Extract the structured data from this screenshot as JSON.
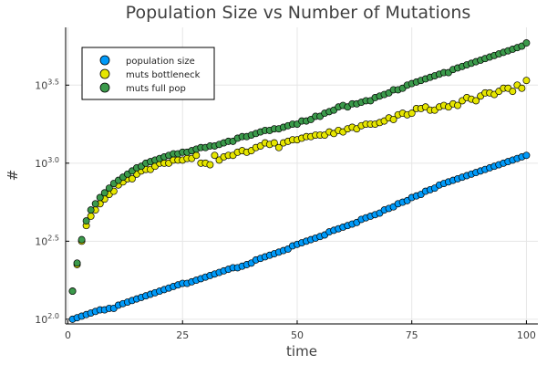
{
  "chart_data": {
    "type": "scatter",
    "title": "Population Size vs Number of Mutations",
    "xlabel": "time",
    "ylabel": "#",
    "xlim": [
      -0.5,
      102.5
    ],
    "ylim_log10": [
      1.97,
      3.87
    ],
    "yscale": "log10",
    "grid": true,
    "legend_position": "top-left",
    "x_ticks": [
      0,
      25,
      50,
      75,
      100
    ],
    "y_ticks": [
      {
        "value": 2.0,
        "base": "10",
        "exp": "2.0"
      },
      {
        "value": 2.5,
        "base": "10",
        "exp": "2.5"
      },
      {
        "value": 3.0,
        "base": "10",
        "exp": "3.0"
      },
      {
        "value": 3.5,
        "base": "10",
        "exp": "3.5"
      }
    ],
    "x": [
      1,
      2,
      3,
      4,
      5,
      6,
      7,
      8,
      9,
      10,
      11,
      12,
      13,
      14,
      15,
      16,
      17,
      18,
      19,
      20,
      21,
      22,
      23,
      24,
      25,
      26,
      27,
      28,
      29,
      30,
      31,
      32,
      33,
      34,
      35,
      36,
      37,
      38,
      39,
      40,
      41,
      42,
      43,
      44,
      45,
      46,
      47,
      48,
      49,
      50,
      51,
      52,
      53,
      54,
      55,
      56,
      57,
      58,
      59,
      60,
      61,
      62,
      63,
      64,
      65,
      66,
      67,
      68,
      69,
      70,
      71,
      72,
      73,
      74,
      75,
      76,
      77,
      78,
      79,
      80,
      81,
      82,
      83,
      84,
      85,
      86,
      87,
      88,
      89,
      90,
      91,
      92,
      93,
      94,
      95,
      96,
      97,
      98,
      99,
      100
    ],
    "series": [
      {
        "name": "population size",
        "color": "#009af9",
        "values_log10": [
          2.0,
          2.01,
          2.02,
          2.03,
          2.04,
          2.05,
          2.06,
          2.06,
          2.07,
          2.07,
          2.09,
          2.1,
          2.11,
          2.12,
          2.13,
          2.14,
          2.15,
          2.16,
          2.17,
          2.18,
          2.19,
          2.2,
          2.21,
          2.22,
          2.23,
          2.23,
          2.24,
          2.25,
          2.26,
          2.27,
          2.28,
          2.29,
          2.3,
          2.31,
          2.32,
          2.33,
          2.33,
          2.34,
          2.35,
          2.36,
          2.38,
          2.39,
          2.4,
          2.41,
          2.42,
          2.43,
          2.44,
          2.45,
          2.47,
          2.48,
          2.49,
          2.5,
          2.51,
          2.52,
          2.53,
          2.54,
          2.56,
          2.57,
          2.58,
          2.59,
          2.6,
          2.61,
          2.62,
          2.64,
          2.65,
          2.66,
          2.67,
          2.68,
          2.7,
          2.71,
          2.72,
          2.74,
          2.75,
          2.76,
          2.78,
          2.79,
          2.8,
          2.82,
          2.83,
          2.84,
          2.86,
          2.87,
          2.88,
          2.89,
          2.9,
          2.91,
          2.92,
          2.93,
          2.94,
          2.95,
          2.96,
          2.97,
          2.98,
          2.99,
          3.0,
          3.01,
          3.02,
          3.03,
          3.04,
          3.05
        ]
      },
      {
        "name": "muts bottleneck",
        "color": "#e6e600",
        "values_log10": [
          2.18,
          2.35,
          2.5,
          2.6,
          2.66,
          2.7,
          2.74,
          2.77,
          2.8,
          2.82,
          2.86,
          2.88,
          2.9,
          2.9,
          2.93,
          2.95,
          2.96,
          2.96,
          2.98,
          3.0,
          3.0,
          3.0,
          3.02,
          3.02,
          3.02,
          3.03,
          3.03,
          3.05,
          3.0,
          3.0,
          2.99,
          3.05,
          3.02,
          3.04,
          3.05,
          3.05,
          3.07,
          3.08,
          3.07,
          3.08,
          3.1,
          3.11,
          3.13,
          3.12,
          3.13,
          3.1,
          3.13,
          3.14,
          3.15,
          3.15,
          3.16,
          3.17,
          3.17,
          3.18,
          3.18,
          3.18,
          3.2,
          3.19,
          3.21,
          3.2,
          3.22,
          3.23,
          3.22,
          3.24,
          3.25,
          3.25,
          3.25,
          3.26,
          3.27,
          3.29,
          3.28,
          3.31,
          3.32,
          3.31,
          3.32,
          3.35,
          3.35,
          3.36,
          3.34,
          3.34,
          3.36,
          3.37,
          3.36,
          3.38,
          3.37,
          3.4,
          3.42,
          3.41,
          3.4,
          3.43,
          3.45,
          3.45,
          3.44,
          3.46,
          3.48,
          3.48,
          3.46,
          3.5,
          3.48,
          3.53
        ]
      },
      {
        "name": "muts full pop",
        "color": "#3b9a4b",
        "values_log10": [
          2.18,
          2.36,
          2.51,
          2.63,
          2.7,
          2.74,
          2.78,
          2.81,
          2.84,
          2.87,
          2.89,
          2.91,
          2.93,
          2.95,
          2.97,
          2.98,
          3.0,
          3.01,
          3.02,
          3.03,
          3.04,
          3.05,
          3.06,
          3.06,
          3.07,
          3.07,
          3.08,
          3.09,
          3.1,
          3.1,
          3.11,
          3.11,
          3.12,
          3.13,
          3.14,
          3.14,
          3.16,
          3.17,
          3.17,
          3.18,
          3.19,
          3.2,
          3.21,
          3.21,
          3.22,
          3.22,
          3.23,
          3.24,
          3.25,
          3.25,
          3.27,
          3.27,
          3.28,
          3.3,
          3.3,
          3.32,
          3.33,
          3.34,
          3.36,
          3.37,
          3.36,
          3.38,
          3.38,
          3.39,
          3.4,
          3.4,
          3.42,
          3.43,
          3.44,
          3.45,
          3.47,
          3.47,
          3.48,
          3.5,
          3.51,
          3.52,
          3.53,
          3.54,
          3.55,
          3.56,
          3.57,
          3.58,
          3.58,
          3.6,
          3.61,
          3.62,
          3.63,
          3.64,
          3.65,
          3.66,
          3.67,
          3.68,
          3.69,
          3.7,
          3.71,
          3.72,
          3.73,
          3.74,
          3.75,
          3.77
        ]
      }
    ]
  }
}
